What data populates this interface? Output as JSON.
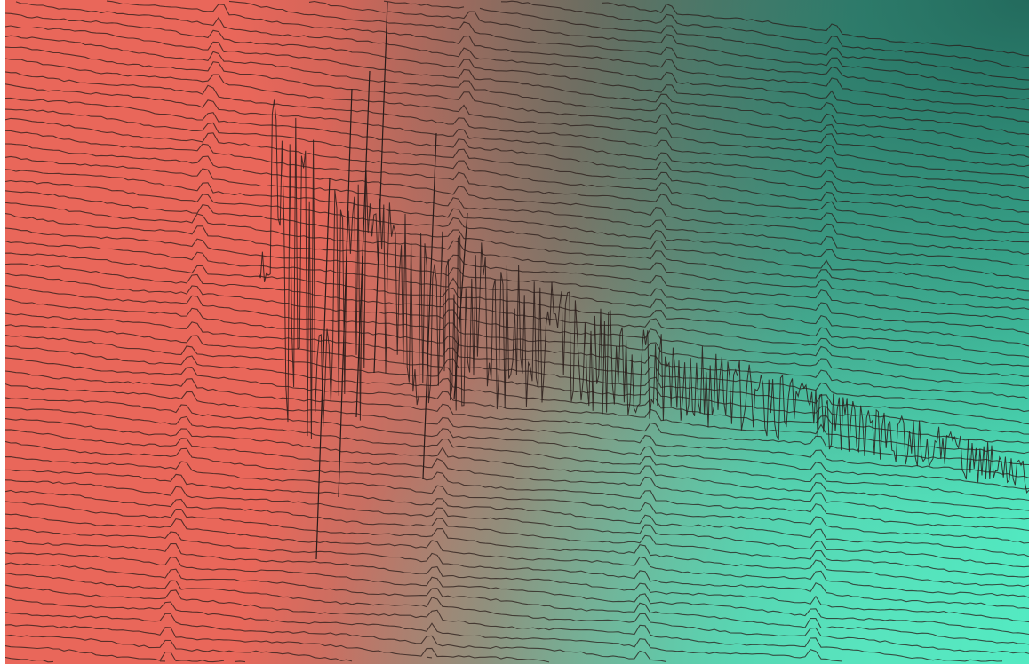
{
  "image": {
    "colors": {
      "left": "#e9675a",
      "center": "#9a7a6c",
      "right_bottom": "#48e6bd",
      "right_top": "#1d5a50",
      "trace": "#2a1c1a"
    }
  }
}
